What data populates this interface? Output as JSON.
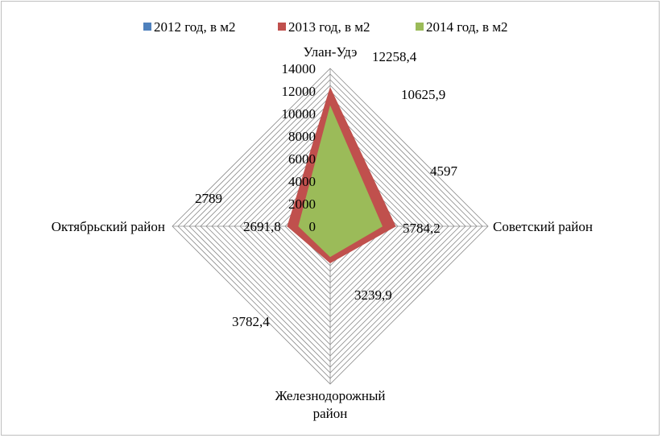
{
  "chart_data": {
    "type": "radar",
    "categories": [
      "Улан-Удэ",
      "Советский район",
      "Железнодорожный район",
      "Октябрьский район"
    ],
    "category_lines": [
      [
        "Улан-Удэ"
      ],
      [
        "Советский район"
      ],
      [
        "Железнодорожный",
        "район"
      ],
      [
        "Октябрьский район"
      ]
    ],
    "axis_ticks": [
      "0",
      "2000",
      "4000",
      "6000",
      "8000",
      "10000",
      "12000",
      "14000"
    ],
    "ylim": [
      0,
      14000
    ],
    "grid_step": 500,
    "legend_position": "top",
    "series": [
      {
        "name": "2012 год, в м2",
        "color": "#4f81bd",
        "values": [
          10625.9,
          4597,
          2691.8,
          2789
        ]
      },
      {
        "name": "2013 год, в м2",
        "color": "#c0504d",
        "values": [
          12258.4,
          5784.2,
          3239.9,
          3782.4
        ]
      },
      {
        "name": "2014 год, в м2",
        "color": "#9bbb59",
        "values": [
          10625.9,
          4597,
          2691.8,
          2789
        ]
      }
    ],
    "data_labels": [
      "12258,4",
      "10625,9",
      "4597",
      "5784,2",
      "3239,9",
      "3782,4",
      "2789",
      "2691,8"
    ]
  }
}
